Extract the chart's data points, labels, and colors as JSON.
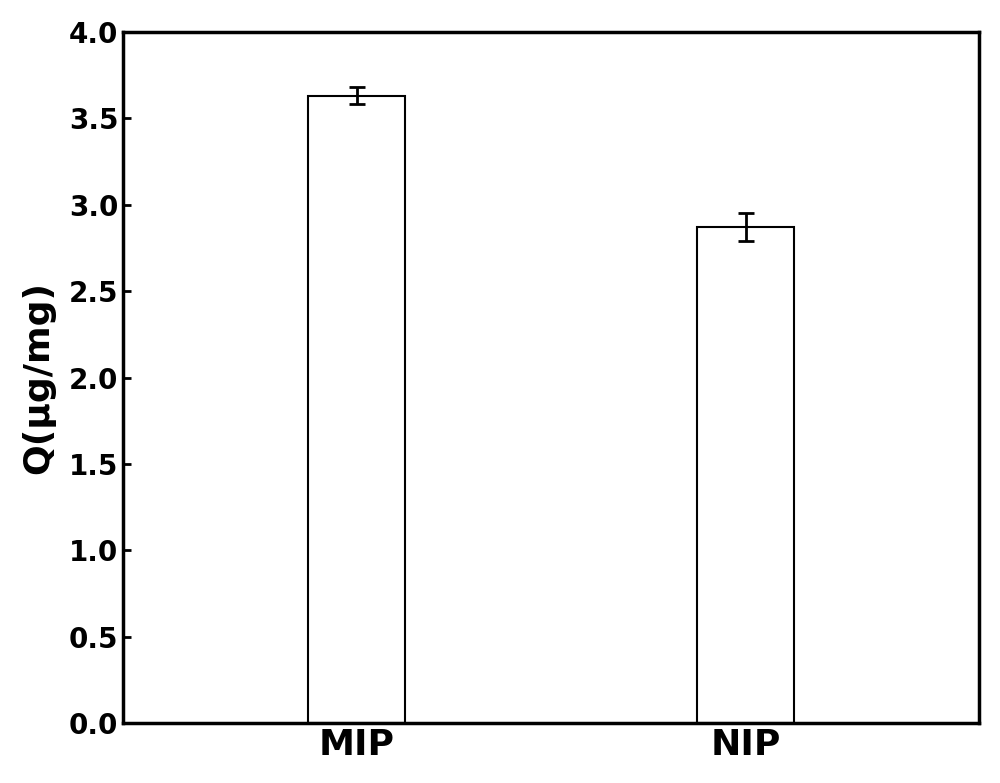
{
  "categories": [
    "MIP",
    "NIP"
  ],
  "values": [
    3.63,
    2.87
  ],
  "errors": [
    0.05,
    0.08
  ],
  "bar_color": "#ffffff",
  "bar_edgecolor": "#000000",
  "ylabel": "Q(μg/mg)",
  "ylim": [
    0.0,
    4.0
  ],
  "yticks": [
    0.0,
    0.5,
    1.0,
    1.5,
    2.0,
    2.5,
    3.0,
    3.5,
    4.0
  ],
  "bar_width": 0.25,
  "bar_positions": [
    1,
    2
  ],
  "xlim": [
    0.4,
    2.6
  ],
  "tick_fontsize": 20,
  "label_fontsize": 26,
  "xticklabel_fontsize": 26,
  "errorbar_capsize": 6,
  "errorbar_linewidth": 2,
  "errorbar_capthick": 2,
  "bar_linewidth": 1.5,
  "spine_linewidth": 2.5,
  "background_color": "#ffffff"
}
